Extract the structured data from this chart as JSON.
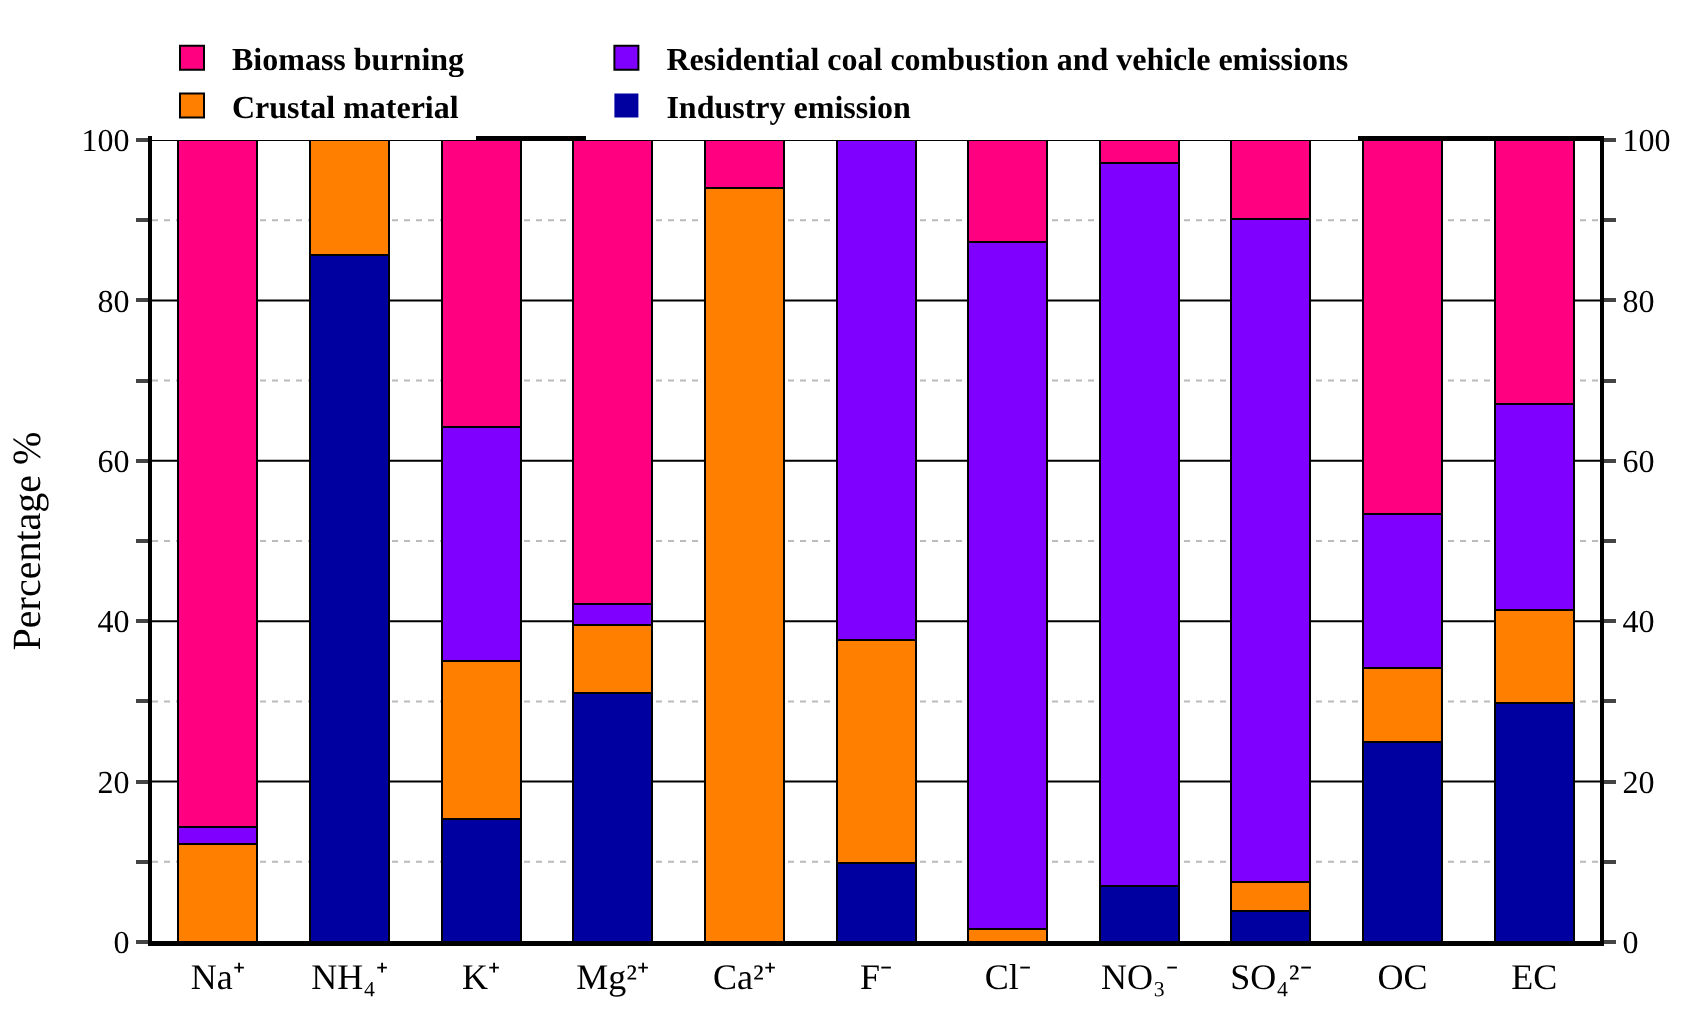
{
  "chart_data": {
    "type": "bar",
    "stacked": true,
    "ylabel": "Percentage %",
    "categories": [
      "Na⁺",
      "NH₄⁺",
      "K⁺",
      "Mg²⁺",
      "Ca²⁺",
      "F⁻",
      "Cl⁻",
      "NO₃⁻",
      "SO₄²⁻",
      "OC",
      "EC"
    ],
    "series": [
      {
        "name": "Industry emission",
        "color": "#0000a0",
        "values": [
          0,
          85.6,
          15.4,
          31.1,
          0,
          9.8,
          0,
          7.0,
          3.9,
          25.0,
          29.8
        ]
      },
      {
        "name": "Crustal material",
        "color": "#ff8000",
        "values": [
          12.2,
          14.4,
          19.7,
          8.4,
          94.0,
          27.9,
          1.6,
          0,
          3.6,
          9.2,
          11.6
        ]
      },
      {
        "name": "Residential coal combustion and vehicle emissions",
        "color": "#8000ff",
        "values": [
          2.2,
          0,
          29.1,
          2.7,
          0,
          62.3,
          85.7,
          90.1,
          82.7,
          19.2,
          25.7
        ]
      },
      {
        "name": "Biomass burning",
        "color": "#ff0080",
        "values": [
          85.6,
          0,
          35.8,
          57.8,
          6.0,
          0,
          12.7,
          2.9,
          9.8,
          46.6,
          32.9
        ]
      }
    ],
    "ylim": [
      0,
      100
    ],
    "yticks": [
      0,
      {
        "value": 10,
        "label": null
      },
      20,
      {
        "value": 30,
        "label": null
      },
      40,
      {
        "value": 50,
        "label": null
      },
      60,
      {
        "value": 70,
        "label": null
      },
      80,
      {
        "value": 90,
        "label": null
      },
      100
    ],
    "y2lim": [
      0,
      100
    ],
    "y2ticks": [
      0,
      {
        "value": 10,
        "label": null
      },
      20,
      {
        "value": 30,
        "label": null
      },
      40,
      {
        "value": 50,
        "label": null
      },
      60,
      {
        "value": 70,
        "label": null
      },
      80,
      {
        "value": 90,
        "label": null
      },
      100
    ],
    "grid": "y",
    "legend": "top"
  }
}
